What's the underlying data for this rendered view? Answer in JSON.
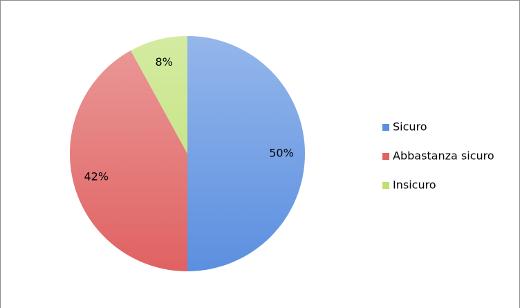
{
  "chart_data": {
    "type": "pie",
    "categories": [
      "Sicuro",
      "Abbastanza sicuro",
      "Insicuro"
    ],
    "values": [
      50,
      42,
      8
    ],
    "value_labels": [
      "50%",
      "42%",
      "8%"
    ],
    "colors": [
      "#5b8fe0",
      "#e06262",
      "#bde070"
    ]
  }
}
